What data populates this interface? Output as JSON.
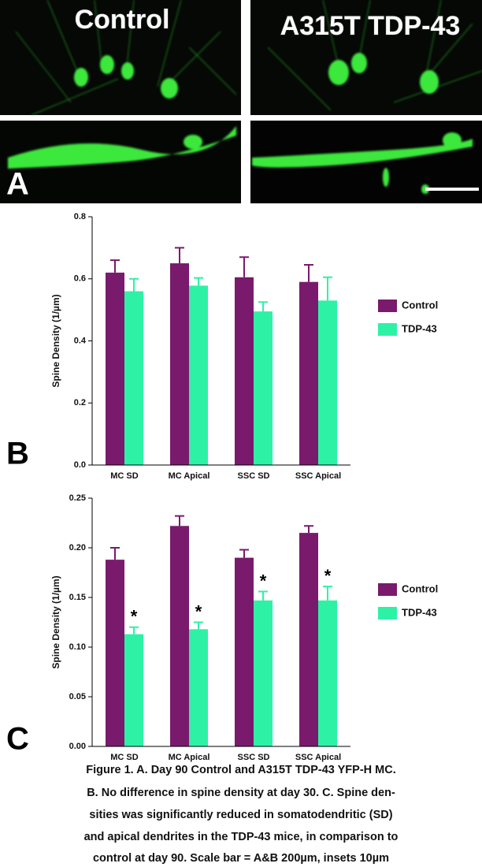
{
  "images": {
    "left_label": "Control",
    "right_label": "A315T TDP-43"
  },
  "panel_labels": [
    "A",
    "B",
    "C"
  ],
  "chart_data": [
    {
      "type": "bar",
      "y_label": "Spine Density (1/µm)",
      "categories": [
        "MC SD",
        "MC Apical",
        "SSC SD",
        "SSC Apical"
      ],
      "series": [
        {
          "name": "Control",
          "color": "#7a1a6c",
          "values": [
            0.62,
            0.65,
            0.605,
            0.59
          ],
          "errors": [
            0.04,
            0.05,
            0.065,
            0.055
          ]
        },
        {
          "name": "TDP-43",
          "color": "#2df2a6",
          "values": [
            0.56,
            0.578,
            0.495,
            0.53
          ],
          "errors": [
            0.04,
            0.025,
            0.03,
            0.075
          ]
        }
      ],
      "ylim": [
        0,
        0.8
      ],
      "yticks": [
        {
          "value": 0,
          "label": "0.0"
        },
        0.2,
        0.4,
        0.6,
        0.8
      ]
    },
    {
      "type": "bar",
      "y_label": "Spine Density (1/µm)",
      "categories": [
        "MC SD",
        "MC Apical",
        "SSC SD",
        "SSC Apical"
      ],
      "series": [
        {
          "name": "Control",
          "color": "#7a1a6c",
          "values": [
            0.188,
            0.222,
            0.19,
            0.215
          ],
          "errors": [
            0.012,
            0.01,
            0.008,
            0.007
          ]
        },
        {
          "name": "TDP-43",
          "color": "#2df2a6",
          "values": [
            0.113,
            0.118,
            0.147,
            0.147
          ],
          "errors": [
            0.007,
            0.007,
            0.009,
            0.014
          ]
        }
      ],
      "annotations": [
        "*",
        "*",
        "*",
        "*"
      ],
      "ylim": [
        0,
        0.25
      ],
      "yticks": [
        {
          "value": 0,
          "label": "0.00"
        },
        {
          "value": 0.05,
          "label": "0.05"
        },
        {
          "value": 0.1,
          "label": "0.10"
        },
        {
          "value": 0.15,
          "label": "0.15"
        },
        {
          "value": 0.2,
          "label": "0.20"
        },
        {
          "value": 0.25,
          "label": "0.25"
        }
      ]
    }
  ],
  "caption": [
    "Figure 1.  A. Day 90 Control and A315T TDP-43 YFP-H  MC.",
    "B. No difference in spine density at day 30. C. Spine den-",
    "sities was significantly reduced in somatodendritic (SD)",
    "and apical dendrites in the TDP-43 mice, in comparison to",
    "control at day 90.  Scale bar = A&B 200µm, insets 10µm"
  ]
}
